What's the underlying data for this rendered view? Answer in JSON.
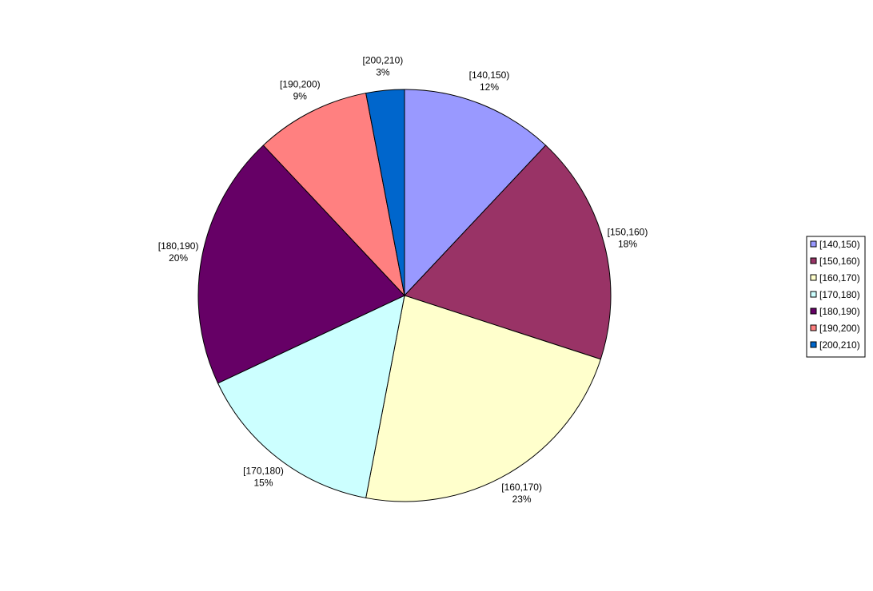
{
  "chart_data": {
    "type": "pie",
    "title": "",
    "legend_position": "right",
    "slices": [
      {
        "label": "[140,150)",
        "value": 12,
        "pct_label": "12%",
        "color": "#9999FF"
      },
      {
        "label": "[150,160)",
        "value": 18,
        "pct_label": "18%",
        "color": "#993366"
      },
      {
        "label": "[160,170)",
        "value": 23,
        "pct_label": "23%",
        "color": "#FFFFCC"
      },
      {
        "label": "[170,180)",
        "value": 15,
        "pct_label": "15%",
        "color": "#CCFFFF"
      },
      {
        "label": "[180,190)",
        "value": 20,
        "pct_label": "20%",
        "color": "#660066"
      },
      {
        "label": "[190,200)",
        "value": 9,
        "pct_label": "9%",
        "color": "#FF8080"
      },
      {
        "label": "[200,210)",
        "value": 3,
        "pct_label": "3%",
        "color": "#0066CC"
      }
    ]
  }
}
